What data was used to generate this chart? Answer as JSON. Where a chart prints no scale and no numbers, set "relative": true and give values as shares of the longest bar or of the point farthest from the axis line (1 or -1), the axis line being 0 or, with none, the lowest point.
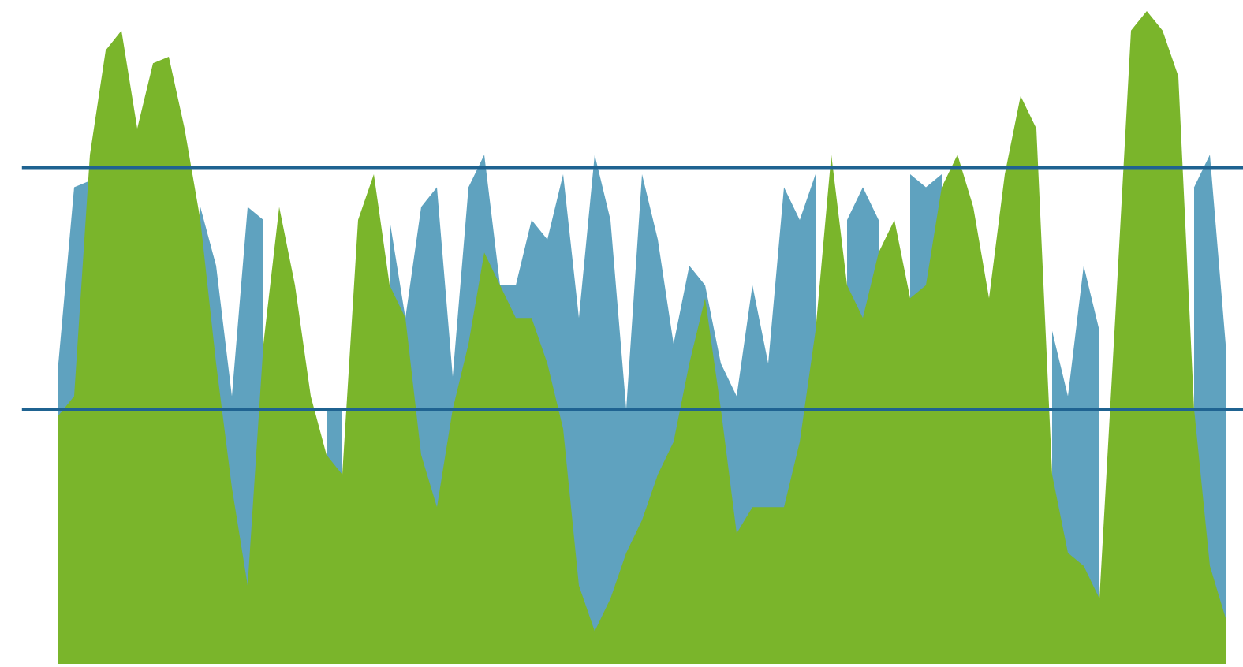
{
  "chart_data": {
    "type": "area",
    "relative": true,
    "categories": [
      null,
      null,
      null,
      null,
      null,
      null,
      null,
      null,
      null,
      null,
      null,
      null,
      null,
      null,
      null,
      null,
      null,
      null,
      null,
      null,
      null,
      null,
      null,
      null,
      null,
      null,
      null,
      null,
      null,
      null,
      null,
      null,
      null,
      null,
      null,
      null,
      null,
      null,
      null,
      null,
      null,
      null,
      null,
      null,
      null,
      null,
      null,
      null,
      null,
      null,
      null,
      null,
      null,
      null,
      null,
      null,
      null,
      null,
      null,
      null,
      null,
      null,
      null,
      null,
      null,
      null,
      null,
      null,
      null,
      null,
      null,
      null,
      null,
      null,
      null
    ],
    "series": [
      {
        "color": "#5fa2bf",
        "values": [
          0.46,
          0.73,
          0.74,
          null,
          null,
          null,
          null,
          null,
          null,
          0.7,
          0.61,
          0.41,
          0.7,
          0.68,
          null,
          null,
          null,
          0.39,
          0.39,
          null,
          null,
          0.68,
          0.53,
          0.7,
          0.73,
          0.44,
          0.73,
          0.78,
          0.58,
          0.58,
          0.68,
          0.65,
          0.75,
          0.53,
          0.78,
          0.68,
          0.39,
          0.75,
          0.65,
          0.49,
          0.61,
          0.58,
          0.46,
          0.41,
          0.58,
          0.46,
          0.73,
          0.68,
          0.75,
          null,
          0.68,
          0.73,
          0.68,
          null,
          0.75,
          0.73,
          0.75,
          null,
          null,
          null,
          null,
          null,
          null,
          0.51,
          0.41,
          0.61,
          0.51,
          null,
          null,
          null,
          null,
          null,
          0.73,
          0.78,
          0.49
        ]
      },
      {
        "color": "#7ab52b",
        "values": [
          0.38,
          0.41,
          0.78,
          0.94,
          0.97,
          0.82,
          0.92,
          0.93,
          0.82,
          0.68,
          0.46,
          0.27,
          0.12,
          0.49,
          0.7,
          0.58,
          0.41,
          0.32,
          0.29,
          0.68,
          0.75,
          0.58,
          0.53,
          0.32,
          0.24,
          0.39,
          0.49,
          0.63,
          0.58,
          0.53,
          0.53,
          0.46,
          0.36,
          0.12,
          0.05,
          0.1,
          0.17,
          0.22,
          0.29,
          0.34,
          0.46,
          0.56,
          0.39,
          0.2,
          0.24,
          0.24,
          0.24,
          0.34,
          0.51,
          0.78,
          0.58,
          0.53,
          0.63,
          0.68,
          0.56,
          0.58,
          0.73,
          0.78,
          0.7,
          0.56,
          0.75,
          0.87,
          0.82,
          0.29,
          0.17,
          0.15,
          0.1,
          0.53,
          0.97,
          1.0,
          0.97,
          0.9,
          0.39,
          0.15,
          0.07
        ]
      }
    ],
    "ref_lines": [
      {
        "axis": "y",
        "value": 0.76,
        "color": "#1f6391"
      },
      {
        "axis": "y",
        "value": 0.39,
        "color": "#1f6391"
      }
    ]
  }
}
